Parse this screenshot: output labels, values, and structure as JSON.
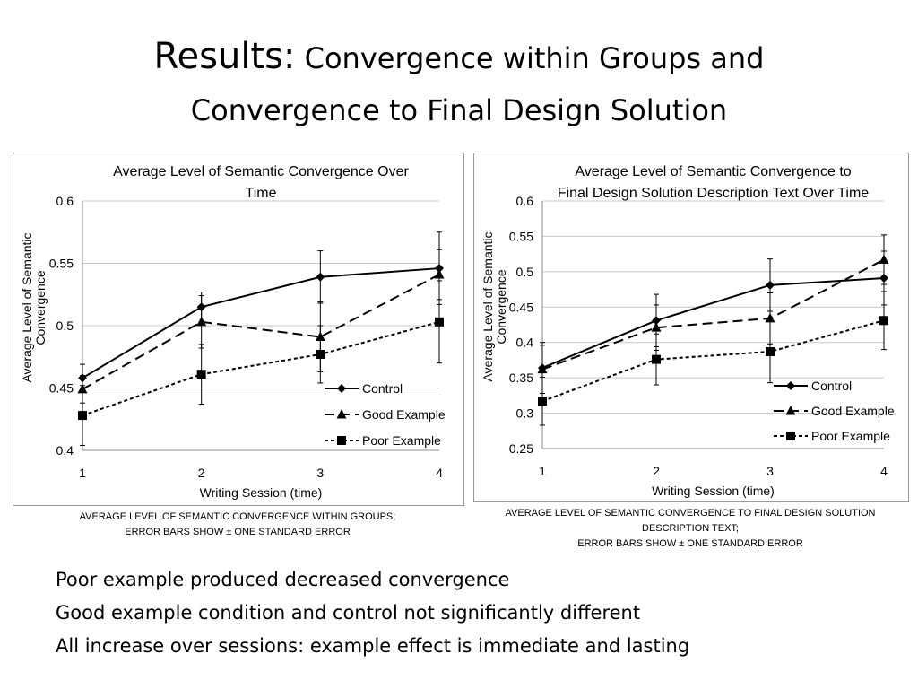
{
  "slide": {
    "title_prefix": "Results:",
    "title_rest_line1": "Convergence within Groups and",
    "title_line2": "Convergence to Final Design Solution"
  },
  "captions": {
    "left": [
      "AVERAGE LEVEL OF SEMANTIC CONVERGENCE WITHIN GROUPS;",
      "ERROR BARS SHOW ± ONE STANDARD ERROR"
    ],
    "right": [
      "AVERAGE LEVEL OF SEMANTIC CONVERGENCE TO FINAL DESIGN SOLUTION",
      "DESCRIPTION TEXT;",
      "ERROR BARS SHOW ± ONE STANDARD ERROR"
    ]
  },
  "bullets": [
    "Poor example produced decreased convergence",
    "Good example condition and control not significantly different",
    "All increase over sessions: example effect is immediate and lasting"
  ],
  "chart_data": [
    {
      "type": "line",
      "title": [
        "Average Level of Semantic Convergence Over",
        "Time"
      ],
      "xlabel": "Writing Session (time)",
      "ylabel": [
        "Average Level of Semantic",
        "Convergence"
      ],
      "x": [
        1,
        2,
        3,
        4
      ],
      "xlim": [
        1,
        4
      ],
      "ylim": [
        0.4,
        0.6
      ],
      "yticks": [
        0.4,
        0.45,
        0.5,
        0.55,
        0.6
      ],
      "ytick_labels": [
        "0.4",
        "0.45",
        "0.5",
        "0.55",
        "0.6"
      ],
      "grid": true,
      "legend": "bottom-right",
      "series": [
        {
          "name": "Control",
          "marker": "diamond",
          "dash": "solid",
          "values": [
            0.458,
            0.515,
            0.539,
            0.546
          ],
          "err": [
            0.011,
            0.012,
            0.021,
            0.029
          ]
        },
        {
          "name": "Good Example",
          "marker": "triangle",
          "dash": "long",
          "values": [
            0.449,
            0.503,
            0.491,
            0.541
          ],
          "err": [
            0.011,
            0.021,
            0.028,
            0.02
          ]
        },
        {
          "name": "Poor Example",
          "marker": "square",
          "dash": "short",
          "values": [
            0.428,
            0.461,
            0.477,
            0.503
          ],
          "err": [
            0.024,
            0.024,
            0.023,
            0.033
          ]
        }
      ]
    },
    {
      "type": "line",
      "title": [
        "Average Level of Semantic Convergence to",
        "Final Design Solution Description Text Over Time"
      ],
      "xlabel": "Writing Session (time)",
      "ylabel": [
        "Average Level of Semantic",
        "Convergence"
      ],
      "x": [
        1,
        2,
        3,
        4
      ],
      "xlim": [
        1,
        4
      ],
      "ylim": [
        0.25,
        0.6
      ],
      "yticks": [
        0.25,
        0.3,
        0.35,
        0.4,
        0.45,
        0.5,
        0.55,
        0.6
      ],
      "ytick_labels": [
        "0.25",
        "0.3",
        "0.35",
        "0.4",
        "0.45",
        "0.5",
        "0.55",
        "0.6"
      ],
      "grid": true,
      "legend": "bottom-right",
      "series": [
        {
          "name": "Control",
          "marker": "diamond",
          "dash": "solid",
          "values": [
            0.364,
            0.431,
            0.481,
            0.491
          ],
          "err": [
            0.036,
            0.037,
            0.037,
            0.038
          ]
        },
        {
          "name": "Good Example",
          "marker": "triangle",
          "dash": "long",
          "values": [
            0.362,
            0.421,
            0.434,
            0.517
          ],
          "err": [
            0.034,
            0.032,
            0.036,
            0.035
          ]
        },
        {
          "name": "Poor Example",
          "marker": "square",
          "dash": "short",
          "values": [
            0.317,
            0.376,
            0.387,
            0.431
          ],
          "err": [
            0.034,
            0.036,
            0.044,
            0.041
          ]
        }
      ]
    }
  ]
}
